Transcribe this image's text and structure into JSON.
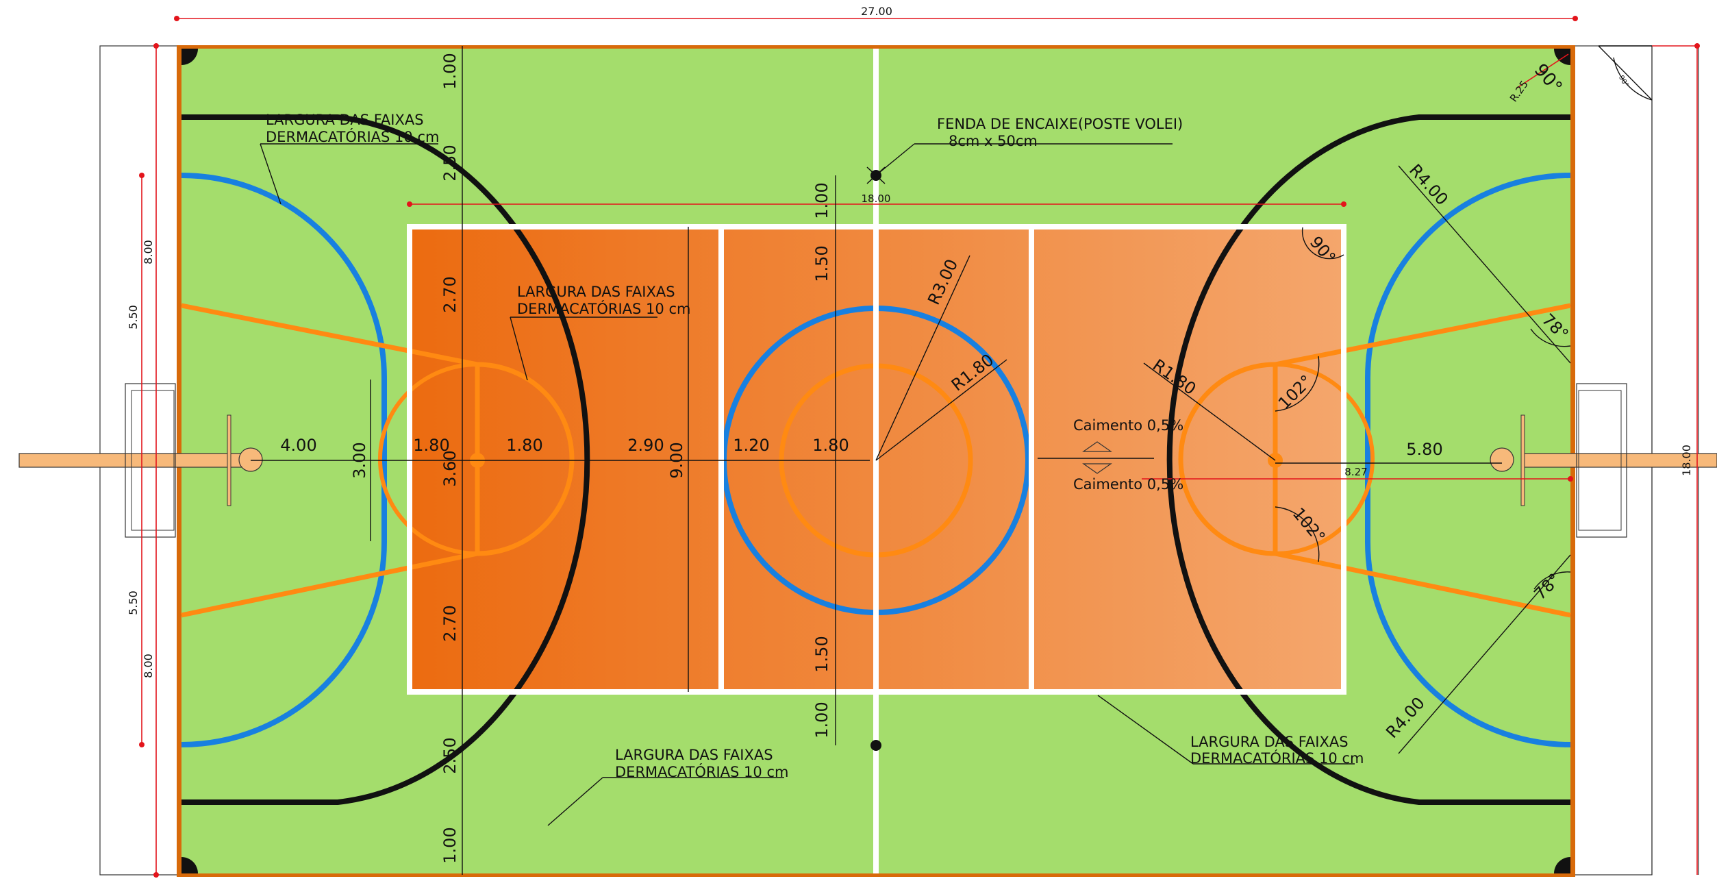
{
  "overall": {
    "length": "27.00",
    "width": "18.00",
    "sideband": "5.50"
  },
  "labels": {
    "stripe_width_l1": "LARGURA DAS FAIXAS",
    "stripe_width_l2": "DERMACATÓRIAS 10 cm",
    "slot_l1": "FENDA DE ENCAIXE(POSTE VOLEI)",
    "slot_l2": "8cm  x  50cm",
    "slope": "Caimento 0,5%"
  },
  "dims": {
    "d100": "1.00",
    "d250": "2.50",
    "d270": "2.70",
    "d150": "1.50",
    "d400": "4.00",
    "d300": "3.00",
    "d180": "1.80",
    "d360": "3.60",
    "d290": "2.90",
    "d900": "9.00",
    "d120": "1.20",
    "d580": "5.80",
    "d827": "8.27",
    "d800": "8.00",
    "d1800": "18.00"
  },
  "radii": {
    "r300": "R3.00",
    "r180": "R1.80",
    "r400": "R4.00",
    "r025": "R.25"
  },
  "angles": {
    "a90": "90°",
    "a78": "78°",
    "a102": "102°",
    "a90s": "90°"
  },
  "colors": {
    "green": "#a4dd6c",
    "orange_dark": "#ee7214",
    "orange_light": "#f4a468",
    "blue": "#1880e0",
    "orange_line": "#ff8a12",
    "black": "#111111",
    "white": "#ffffff",
    "border": "#d86a0a"
  }
}
